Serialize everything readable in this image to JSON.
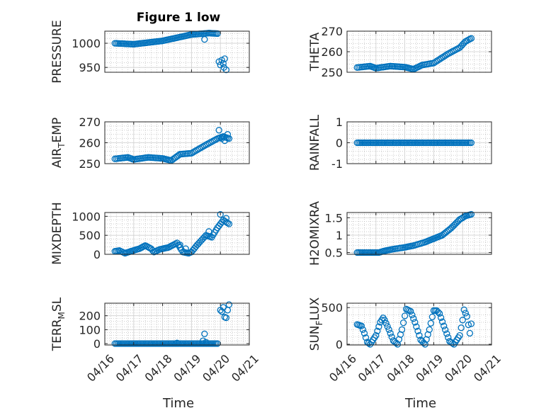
{
  "figure": {
    "title": "Figure 1 low",
    "xlabel": "Time"
  },
  "colors": {
    "marker": "#0072BD",
    "axis": "#262626",
    "grid": "#b0b0b0"
  },
  "chart_data": [
    {
      "type": "scatter",
      "ylabel": "PRESSURE",
      "xlim": [
        0,
        5
      ],
      "ylim": [
        940,
        1025
      ],
      "yticks": [
        950,
        1000
      ],
      "ytick_labels": [
        "950",
        "1000"
      ],
      "xticks": [
        0,
        1,
        2,
        3,
        4,
        5
      ],
      "xtick_labels": [
        "04/16",
        "04/17",
        "04/18",
        "04/19",
        "04/20",
        "04/21"
      ],
      "grid": true,
      "segments": [
        [
          0.35,
          1000
        ],
        [
          1.0,
          998
        ],
        [
          2.0,
          1005
        ],
        [
          3.0,
          1018
        ],
        [
          3.6,
          1021
        ],
        [
          3.9,
          1020
        ]
      ],
      "extra_points": [
        [
          3.45,
          1008
        ],
        [
          3.95,
          962
        ],
        [
          4.0,
          955
        ],
        [
          4.05,
          965
        ],
        [
          4.1,
          958
        ],
        [
          4.12,
          950
        ],
        [
          4.15,
          968
        ],
        [
          4.2,
          945
        ]
      ]
    },
    {
      "type": "scatter",
      "ylabel": "THETA",
      "xlim": [
        0,
        5
      ],
      "ylim": [
        250,
        270
      ],
      "yticks": [
        250,
        260,
        270
      ],
      "ytick_labels": [
        "250",
        "260",
        "270"
      ],
      "xticks": [
        0,
        1,
        2,
        3,
        4,
        5
      ],
      "xtick_labels": [
        "04/16",
        "04/17",
        "04/18",
        "04/19",
        "04/20",
        "04/21"
      ],
      "grid": true,
      "segments": [
        [
          0.35,
          252.3
        ],
        [
          0.8,
          253
        ],
        [
          1.0,
          252
        ],
        [
          1.5,
          253
        ],
        [
          2.0,
          252.5
        ],
        [
          2.3,
          251.5
        ],
        [
          2.6,
          253.5
        ],
        [
          3.0,
          254.5
        ],
        [
          3.5,
          259
        ],
        [
          3.9,
          262
        ],
        [
          4.1,
          265
        ],
        [
          4.3,
          266.5
        ]
      ],
      "extra_points": []
    },
    {
      "type": "scatter",
      "ylabel": "AIR_TEMP",
      "ylabel_main": "AIR",
      "ylabel_sub": "T",
      "ylabel_rest": "EMP",
      "xlim": [
        0,
        5
      ],
      "ylim": [
        250,
        270
      ],
      "yticks": [
        250,
        260,
        270
      ],
      "ytick_labels": [
        "250",
        "260",
        "270"
      ],
      "xticks": [
        0,
        1,
        2,
        3,
        4,
        5
      ],
      "xtick_labels": [
        "04/16",
        "04/17",
        "04/18",
        "04/19",
        "04/20",
        "04/21"
      ],
      "grid": true,
      "segments": [
        [
          0.35,
          252.3
        ],
        [
          0.8,
          253
        ],
        [
          1.0,
          252
        ],
        [
          1.5,
          253
        ],
        [
          2.0,
          252.5
        ],
        [
          2.3,
          251.5
        ],
        [
          2.6,
          254.5
        ],
        [
          3.0,
          255
        ],
        [
          3.5,
          259
        ],
        [
          3.9,
          262
        ],
        [
          4.1,
          263
        ],
        [
          4.3,
          262
        ]
      ],
      "extra_points": [
        [
          3.95,
          266
        ],
        [
          4.05,
          262
        ],
        [
          4.15,
          261
        ],
        [
          4.25,
          264
        ]
      ]
    },
    {
      "type": "scatter",
      "ylabel": "RAINFALL",
      "xlim": [
        0,
        5
      ],
      "ylim": [
        -1,
        1
      ],
      "yticks": [
        -1,
        0,
        1
      ],
      "ytick_labels": [
        "-1",
        "0",
        "1"
      ],
      "xticks": [
        0,
        1,
        2,
        3,
        4,
        5
      ],
      "xtick_labels": [
        "04/16",
        "04/17",
        "04/18",
        "04/19",
        "04/20",
        "04/21"
      ],
      "grid": true,
      "segments": [
        [
          0.35,
          0
        ],
        [
          4.3,
          0
        ]
      ],
      "extra_points": []
    },
    {
      "type": "scatter",
      "ylabel": "MIXDEPTH",
      "xlim": [
        0,
        5
      ],
      "ylim": [
        0,
        1100
      ],
      "yticks": [
        0,
        500,
        1000
      ],
      "ytick_labels": [
        "0",
        "500",
        "1000"
      ],
      "xticks": [
        0,
        1,
        2,
        3,
        4,
        5
      ],
      "xtick_labels": [
        "04/16",
        "04/17",
        "04/18",
        "04/19",
        "04/20",
        "04/21"
      ],
      "grid": true,
      "segments": [
        [
          0.35,
          80
        ],
        [
          0.5,
          100
        ],
        [
          0.7,
          30
        ],
        [
          0.9,
          80
        ],
        [
          1.2,
          150
        ],
        [
          1.4,
          230
        ],
        [
          1.6,
          150
        ],
        [
          1.7,
          60
        ],
        [
          1.9,
          130
        ],
        [
          2.2,
          180
        ],
        [
          2.5,
          300
        ],
        [
          2.7,
          60
        ],
        [
          2.9,
          30
        ],
        [
          3.0,
          60
        ],
        [
          3.2,
          250
        ],
        [
          3.5,
          500
        ],
        [
          3.7,
          450
        ],
        [
          3.9,
          700
        ],
        [
          4.1,
          900
        ],
        [
          4.3,
          800
        ]
      ],
      "extra_points": [
        [
          2.6,
          250
        ],
        [
          2.8,
          150
        ],
        [
          3.6,
          600
        ],
        [
          4.0,
          1050
        ],
        [
          4.2,
          950
        ]
      ]
    },
    {
      "type": "scatter",
      "ylabel": "H2OMIXRA",
      "xlim": [
        0,
        5
      ],
      "ylim": [
        0.45,
        1.65
      ],
      "yticks": [
        0.5,
        1,
        1.5
      ],
      "ytick_labels": [
        "0.5",
        "1",
        "1.5"
      ],
      "xticks": [
        0,
        1,
        2,
        3,
        4,
        5
      ],
      "xtick_labels": [
        "04/16",
        "04/17",
        "04/18",
        "04/19",
        "04/20",
        "04/21"
      ],
      "grid": true,
      "segments": [
        [
          0.35,
          0.5
        ],
        [
          1.1,
          0.5
        ],
        [
          1.3,
          0.55
        ],
        [
          1.6,
          0.6
        ],
        [
          2.0,
          0.65
        ],
        [
          2.3,
          0.7
        ],
        [
          2.7,
          0.8
        ],
        [
          3.0,
          0.9
        ],
        [
          3.3,
          1.0
        ],
        [
          3.6,
          1.2
        ],
        [
          3.9,
          1.45
        ],
        [
          4.1,
          1.55
        ],
        [
          4.3,
          1.6
        ]
      ],
      "extra_points": []
    },
    {
      "type": "scatter",
      "ylabel": "TERR_MSL",
      "ylabel_main": "TERR",
      "ylabel_sub": "M",
      "ylabel_rest": "SL",
      "xlim": [
        0,
        5
      ],
      "ylim": [
        -10,
        290
      ],
      "yticks": [
        0,
        100,
        200
      ],
      "ytick_labels": [
        "0",
        "100",
        "200"
      ],
      "xticks": [
        0,
        1,
        2,
        3,
        4,
        5
      ],
      "xtick_labels": [
        "04/16",
        "04/17",
        "04/18",
        "04/19",
        "04/20",
        "04/21"
      ],
      "grid": true,
      "segments": [
        [
          0.35,
          0
        ],
        [
          3.9,
          0
        ]
      ],
      "extra_points": [
        [
          2.5,
          5
        ],
        [
          3.4,
          20
        ],
        [
          3.45,
          70
        ],
        [
          3.5,
          10
        ],
        [
          4.0,
          240
        ],
        [
          4.05,
          230
        ],
        [
          4.1,
          260
        ],
        [
          4.15,
          190
        ],
        [
          4.2,
          185
        ],
        [
          4.25,
          240
        ],
        [
          4.3,
          280
        ]
      ]
    },
    {
      "type": "scatter",
      "ylabel": "SUN_FLUX",
      "ylabel_main": "SUN",
      "ylabel_sub": "F",
      "ylabel_rest": "LUX",
      "xlim": [
        0,
        5
      ],
      "ylim": [
        -10,
        560
      ],
      "yticks": [
        0,
        500
      ],
      "ytick_labels": [
        "0",
        "500"
      ],
      "xticks": [
        0,
        1,
        2,
        3,
        4,
        5
      ],
      "xtick_labels": [
        "04/16",
        "04/17",
        "04/18",
        "04/19",
        "04/20",
        "04/21"
      ],
      "grid": true,
      "segments": [
        [
          0.35,
          270
        ],
        [
          0.5,
          250
        ],
        [
          0.6,
          150
        ],
        [
          0.7,
          30
        ],
        [
          0.8,
          0
        ],
        [
          1.0,
          120
        ],
        [
          1.15,
          300
        ],
        [
          1.25,
          360
        ],
        [
          1.3,
          330
        ],
        [
          1.45,
          200
        ],
        [
          1.6,
          50
        ],
        [
          1.75,
          0
        ],
        [
          1.9,
          200
        ],
        [
          2.05,
          480
        ],
        [
          2.2,
          450
        ],
        [
          2.35,
          300
        ],
        [
          2.55,
          60
        ],
        [
          2.7,
          0
        ],
        [
          2.85,
          200
        ],
        [
          3.0,
          460
        ],
        [
          3.1,
          460
        ],
        [
          3.2,
          420
        ],
        [
          3.35,
          250
        ],
        [
          3.55,
          40
        ],
        [
          3.7,
          0
        ],
        [
          3.9,
          120
        ],
        [
          4.0,
          330
        ],
        [
          4.05,
          470
        ],
        [
          4.15,
          380
        ],
        [
          4.25,
          150
        ],
        [
          4.3,
          280
        ]
      ],
      "extra_points": []
    }
  ]
}
